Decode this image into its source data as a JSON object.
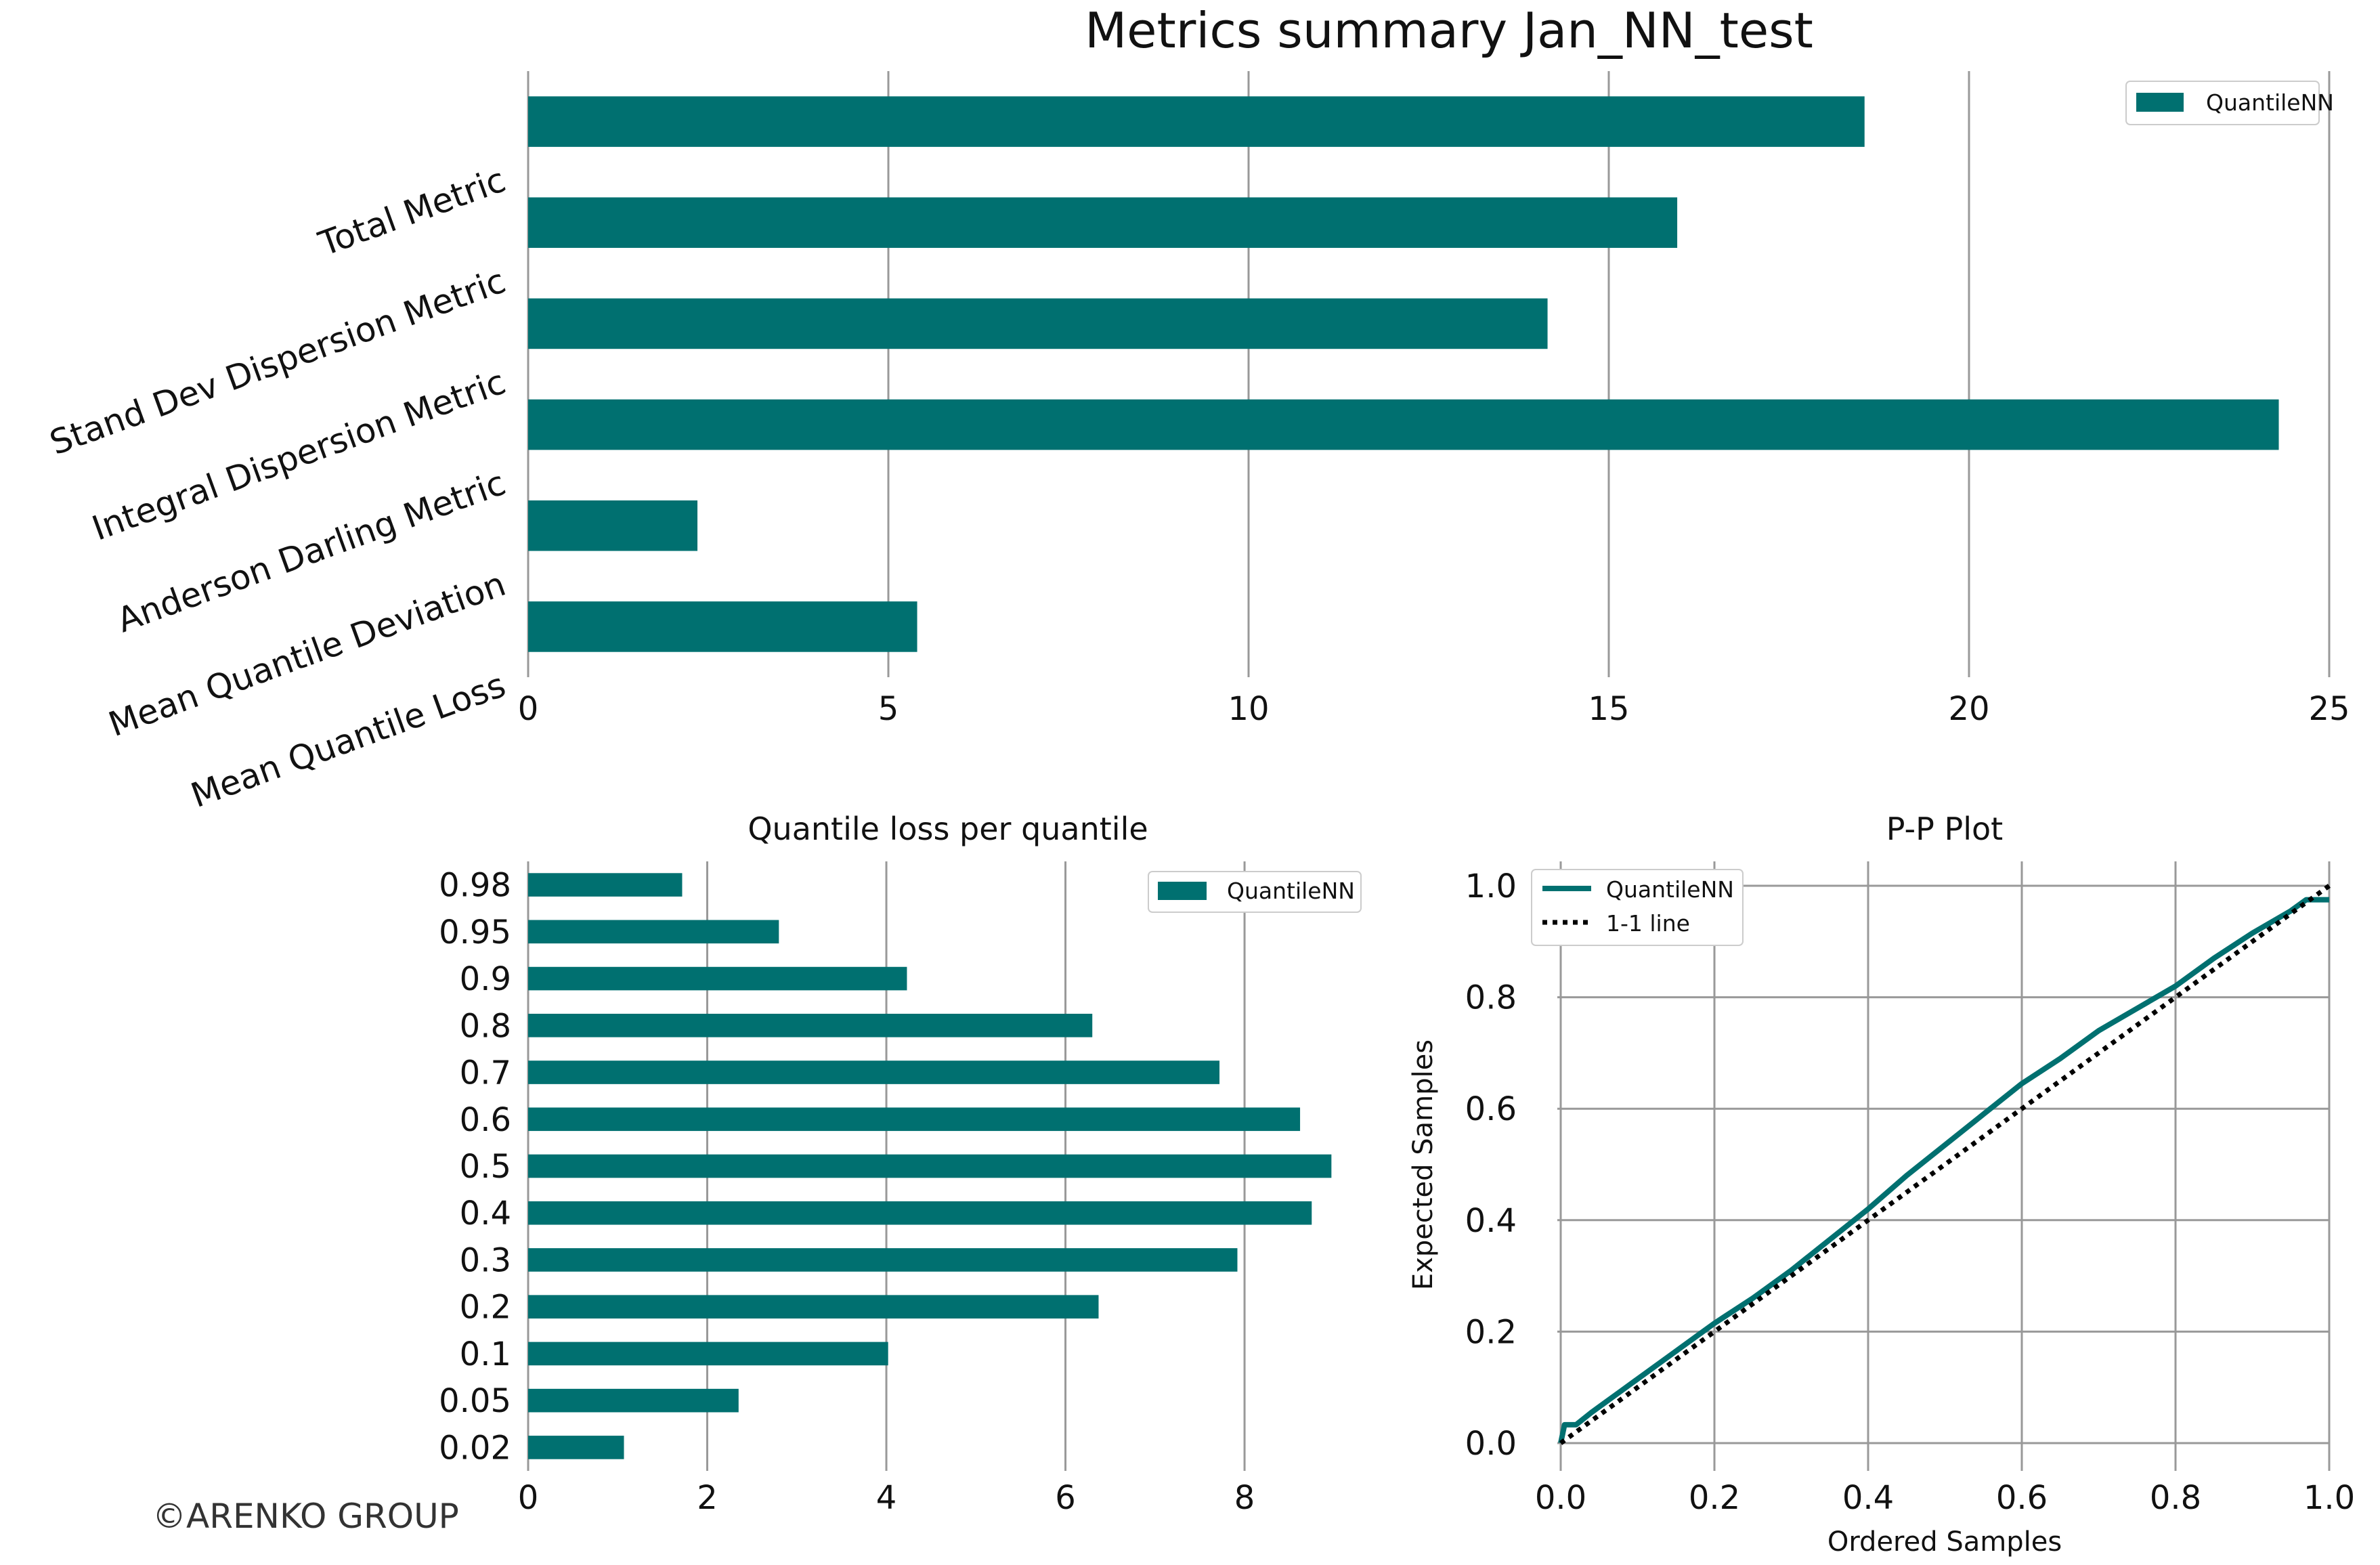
{
  "watermark": "©ARENKO GROUP",
  "colors": {
    "bar": "#007070",
    "line": "#007070",
    "reference": "#000000",
    "grid": "#999999"
  },
  "chart_data": [
    {
      "type": "bar",
      "orientation": "horizontal",
      "title": "Metrics summary Jan_NN_test",
      "categories": [
        "Total Metric",
        "Stand Dev Dispersion Metric",
        "Integral Dispersion Metric",
        "Anderson Darling Metric",
        "Mean Quantile Deviation",
        "Mean Quantile Loss"
      ],
      "series": [
        {
          "name": "QuantileNN",
          "values": [
            18.55,
            15.95,
            14.15,
            24.3,
            2.35,
            5.4
          ]
        }
      ],
      "xlim": [
        0,
        25
      ],
      "xticks": [
        0,
        5,
        10,
        15,
        20,
        25
      ],
      "xtick_labels": [
        "0",
        "5",
        "10",
        "15",
        "20",
        "25"
      ],
      "grid": "vertical",
      "legend": "top-right"
    },
    {
      "type": "bar",
      "orientation": "horizontal",
      "title": "Quantile loss per quantile",
      "categories": [
        "0.98",
        "0.95",
        "0.9",
        "0.8",
        "0.7",
        "0.6",
        "0.5",
        "0.4",
        "0.3",
        "0.2",
        "0.1",
        "0.05",
        "0.02"
      ],
      "series": [
        {
          "name": "QuantileNN",
          "values": [
            1.72,
            2.8,
            4.23,
            6.3,
            7.72,
            8.62,
            8.97,
            8.75,
            7.92,
            6.37,
            4.02,
            2.35,
            1.07
          ]
        }
      ],
      "xlim": [
        0,
        9.3
      ],
      "xticks": [
        0,
        2,
        4,
        6,
        8
      ],
      "xtick_labels": [
        "0",
        "2",
        "4",
        "6",
        "8"
      ],
      "grid": "vertical",
      "legend": "top-right"
    },
    {
      "type": "line",
      "title": "P-P Plot",
      "xlabel": "Ordered Samples",
      "ylabel": "Expected Samples",
      "series": [
        {
          "name": "QuantileNN",
          "x": [
            0,
            0.005,
            0.02,
            0.04,
            0.06,
            0.08,
            0.1,
            0.14,
            0.18,
            0.2,
            0.25,
            0.3,
            0.35,
            0.4,
            0.45,
            0.5,
            0.55,
            0.6,
            0.65,
            0.7,
            0.75,
            0.8,
            0.85,
            0.9,
            0.95,
            0.97,
            1.0
          ],
          "y": [
            0,
            0.033,
            0.033,
            0.055,
            0.075,
            0.095,
            0.115,
            0.155,
            0.195,
            0.215,
            0.26,
            0.31,
            0.365,
            0.42,
            0.48,
            0.535,
            0.59,
            0.645,
            0.69,
            0.74,
            0.78,
            0.82,
            0.87,
            0.915,
            0.955,
            0.975,
            0.975
          ]
        },
        {
          "name": "1-1 line",
          "x": [
            0,
            1
          ],
          "y": [
            0,
            1
          ]
        }
      ],
      "xlim": [
        0,
        1
      ],
      "ylim": [
        0,
        1
      ],
      "xticks": [
        0,
        0.2,
        0.4,
        0.6,
        0.8,
        1.0
      ],
      "xtick_labels": [
        "0.0",
        "0.2",
        "0.4",
        "0.6",
        "0.8",
        "1.0"
      ],
      "yticks": [
        0,
        0.2,
        0.4,
        0.6,
        0.8,
        1.0
      ],
      "ytick_labels": [
        "0.0",
        "0.2",
        "0.4",
        "0.6",
        "0.8",
        "1.0"
      ],
      "grid": "both",
      "legend": "top-left"
    }
  ]
}
